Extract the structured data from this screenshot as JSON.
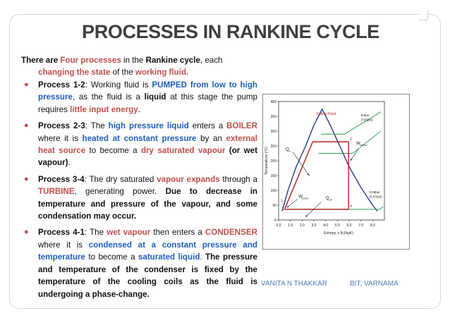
{
  "title": "PROCESSES IN RANKINE CYCLE",
  "intro": {
    "t1": "There are ",
    "t2": "Four processes",
    "t3": " in the ",
    "t4": "Rankine cycle",
    "t5": ", each",
    "t6": "changing the state",
    "t7": " of the ",
    "t8": "working fluid",
    "t9": "."
  },
  "bullets": [
    {
      "p1": "Process 1-2",
      "p2": ": Working fluid is ",
      "p3": "PUMPED from low to high pressure",
      "p4": ", as the fluid is a ",
      "p5": "liquid",
      "p6": " at this stage the pump requires ",
      "p7": "little input energy",
      "p8": "."
    },
    {
      "p1": "Process 2-3",
      "p2": ": The ",
      "p3": "high pressure liquid",
      "p4": " enters a ",
      "p5": "BOILER",
      "p6": " where it is ",
      "p7": "heated at constant pressure",
      "p8": " by an ",
      "p9": "external heat source",
      "p10": " to become a ",
      "p11": "dry saturated vapour",
      "p12": " (or wet vapour)",
      "p13": "."
    },
    {
      "p1": "Process 3-4",
      "p2": ": The dry saturated ",
      "p3": "vapour expands",
      "p4": " through a ",
      "p5": "TURBINE",
      "p6": ", generating power. ",
      "p7": "Due to decrease in temperature and pressure of the vapour, and some condensation may occur."
    },
    {
      "p1": "Process 4-1",
      "p2": ": The ",
      "p3": "wet vapour",
      "p4": " then enters a ",
      "p5": "CONDENSER",
      "p6": " where it is ",
      "p7": "condensed at a constant pressure and temperature",
      "p8": " to become a ",
      "p9": "saturated liquid",
      "p10": ". ",
      "p11": "The pressure and temperature of the condenser is fixed by the temperature of the cooling coils as the fluid is undergoing a phase-change."
    }
  ],
  "chart_data": {
    "type": "line",
    "xlabel": "Entropy, s (kJ/kgK)",
    "ylabel": "Temperature (°C)",
    "xlim": [
      0,
      9.0
    ],
    "ylim": [
      0,
      400
    ],
    "x_ticks": [
      "0.0",
      "1.0",
      "2.0",
      "3.0",
      "4.0",
      "5.0",
      "6.0",
      "7.0",
      "8.0"
    ],
    "y_ticks": [
      "0",
      "50",
      "100",
      "150",
      "200",
      "250",
      "300",
      "350",
      "400"
    ],
    "annotations": {
      "critical_point": "Critical Point",
      "high_pressure": "50bar",
      "high_pressure_psi": "(725psi)",
      "low_pressure": "0.06bar",
      "low_pressure_psi": "(0.87psi)",
      "q_in": "Q",
      "q_in_sub": "in",
      "q_out": "Q",
      "q_out_sub": "out",
      "w_pump": "W",
      "w_pump_sub": "pump",
      "w_turbine": "W",
      "w_turbine_sub": "turbine",
      "state_1": "1",
      "state_2": "2",
      "state_3": "3",
      "state_4": "4"
    },
    "dome": {
      "x": [
        0.3,
        0.8,
        1.5,
        2.3,
        3.0,
        3.7,
        4.4,
        5.2,
        6.0,
        7.0,
        8.0,
        8.4
      ],
      "y": [
        30,
        100,
        180,
        250,
        320,
        374,
        320,
        250,
        180,
        110,
        50,
        30
      ]
    },
    "cycle": {
      "s": [
        0.55,
        0.55,
        2.9,
        5.95,
        5.95,
        0.55
      ],
      "T": [
        36,
        40,
        264,
        264,
        36,
        36
      ]
    }
  },
  "footer": {
    "author": "VANITA N THAKKAR",
    "institution": "BIT, VARNAMA"
  }
}
